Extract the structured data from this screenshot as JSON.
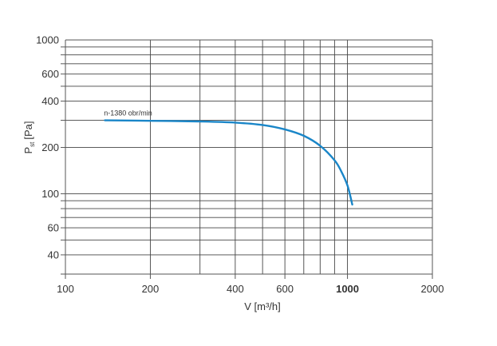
{
  "chart_data": {
    "type": "line",
    "title": "",
    "xlabel": "V [m³/h]",
    "ylabel": {
      "main": "P",
      "sub": "st",
      "unit": "[Pa]"
    },
    "xscale": "log",
    "yscale": "log",
    "xlim": [
      100,
      2000
    ],
    "ylim": [
      30,
      1000
    ],
    "x_ticks": [
      {
        "value": 100,
        "label": "100"
      },
      {
        "value": 200,
        "label": "200"
      },
      {
        "value": 400,
        "label": "400"
      },
      {
        "value": 600,
        "label": "600"
      },
      {
        "value": 1000,
        "label": "1000",
        "bold": true
      },
      {
        "value": 2000,
        "label": "2000"
      }
    ],
    "y_ticks": [
      {
        "value": 40,
        "label": "40"
      },
      {
        "value": 60,
        "label": "60"
      },
      {
        "value": 100,
        "label": "100"
      },
      {
        "value": 200,
        "label": "200"
      },
      {
        "value": 400,
        "label": "400"
      },
      {
        "value": 600,
        "label": "600"
      },
      {
        "value": 1000,
        "label": "1000"
      }
    ],
    "x_grid": [
      200,
      300,
      400,
      500,
      600,
      700,
      800,
      900,
      1000
    ],
    "y_grid": [
      40,
      50,
      60,
      70,
      80,
      90,
      100,
      200,
      300,
      400,
      500,
      600,
      700,
      800,
      900
    ],
    "grid": true,
    "series": [
      {
        "name": "",
        "color": "#1a86c8",
        "x": [
          138,
          200,
          300,
          400,
          500,
          600,
          700,
          800,
          900,
          950,
          1000,
          1040
        ],
        "y": [
          300,
          298,
          295,
          290,
          280,
          262,
          238,
          205,
          165,
          140,
          113,
          85
        ]
      }
    ],
    "annotations": [
      {
        "text": "n-1380 obr/min",
        "x": 150,
        "y": 330
      }
    ],
    "colors": {
      "axis": "#555555",
      "grid": "#444444",
      "curve": "#1a86c8"
    }
  }
}
